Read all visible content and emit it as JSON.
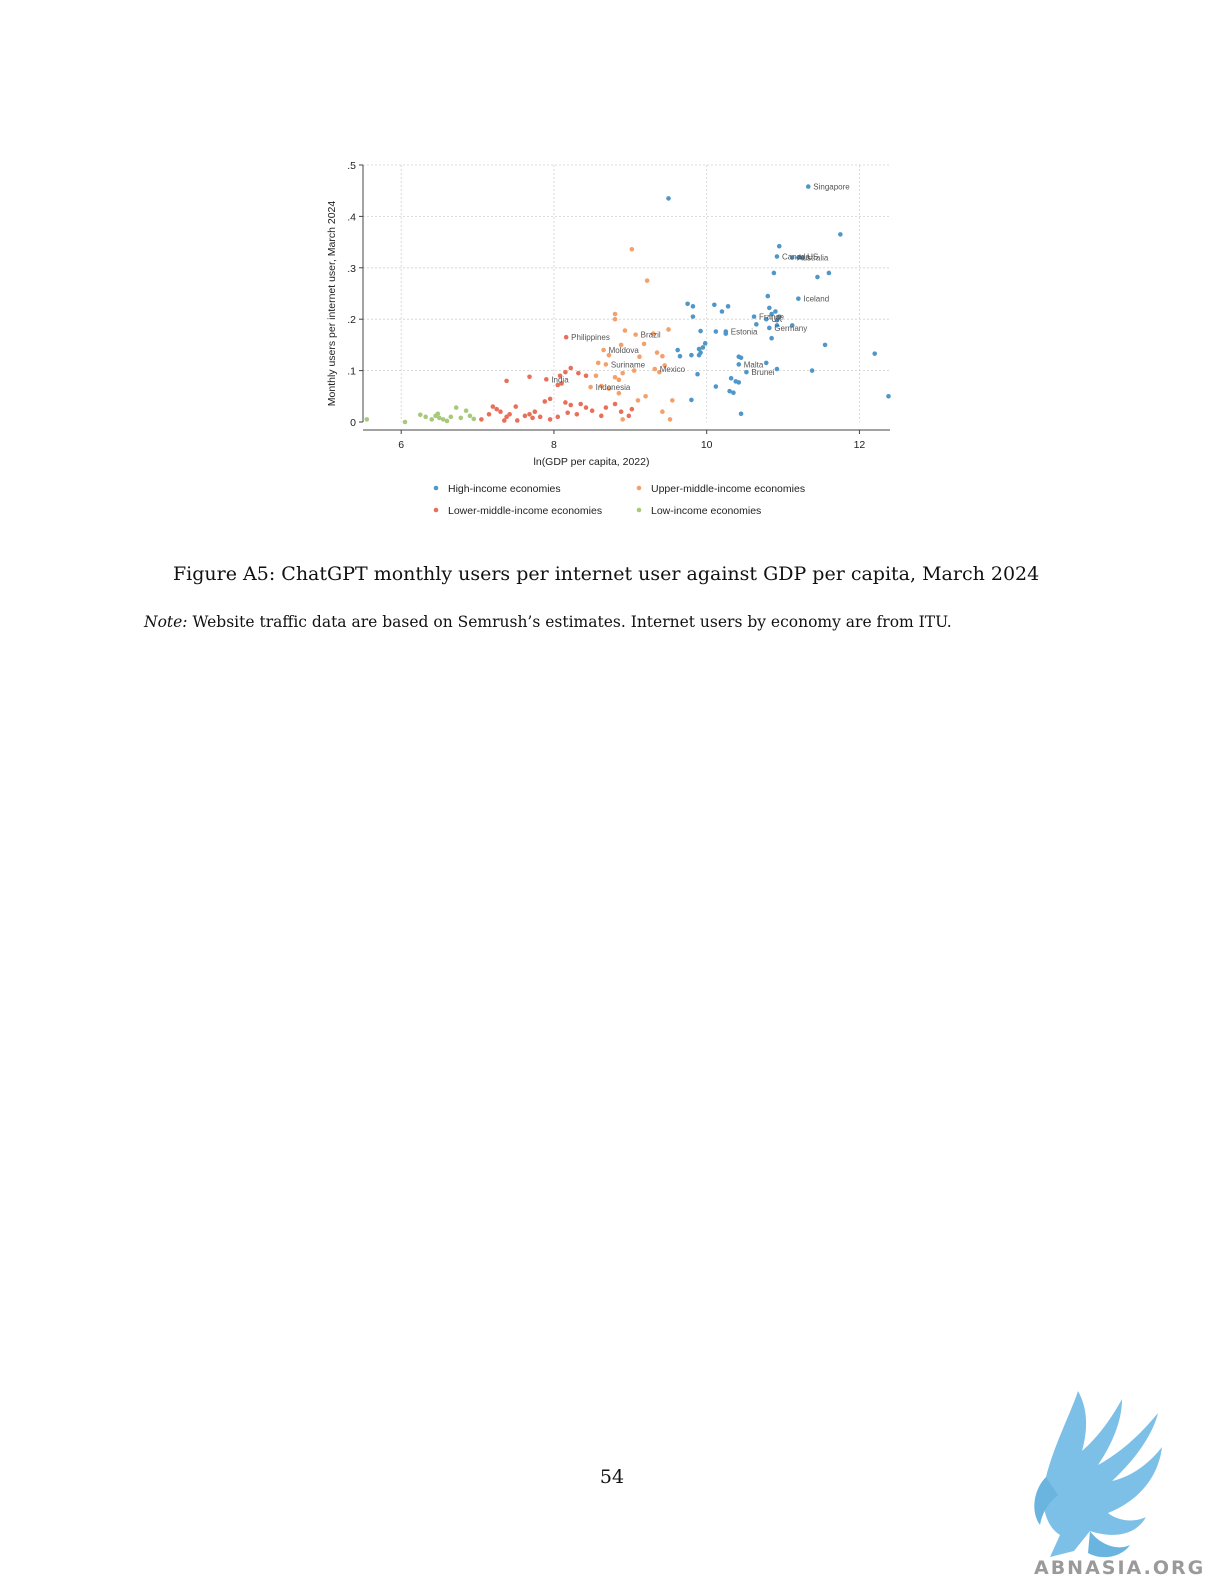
{
  "figure": {
    "caption": "Figure A5: ChatGPT monthly users per internet user against GDP per capita, March 2024",
    "note_label": "Note:",
    "note_text": " Website traffic data are based on Semrush’s estimates. Internet users by economy are from ITU."
  },
  "page": {
    "number": "54"
  },
  "logo": {
    "text": "ABNASIA.ORG",
    "icon": "griffin-icon"
  },
  "chart_data": {
    "type": "scatter",
    "title": "",
    "xlabel": "ln(GDP per capita, 2022)",
    "ylabel": "Monthly users per internet user, March 2024",
    "xlim": [
      5.5,
      12.4
    ],
    "ylim": [
      0,
      0.5
    ],
    "x_ticks": [
      6,
      8,
      10,
      12
    ],
    "x_tick_labels": [
      "6",
      "8",
      "10",
      "12"
    ],
    "y_ticks": [
      0,
      0.1,
      0.2,
      0.3,
      0.4,
      0.5
    ],
    "y_tick_labels": [
      "0",
      ".1",
      ".2",
      ".3",
      ".4",
      ".5"
    ],
    "grid": true,
    "legend_position": "bottom",
    "series": [
      {
        "name": "High-income economies",
        "color": "#4f97c9",
        "points": [
          [
            9.5,
            0.435
          ],
          [
            11.33,
            0.458
          ],
          [
            11.75,
            0.365
          ],
          [
            10.95,
            0.342
          ],
          [
            10.92,
            0.322
          ],
          [
            11.12,
            0.32
          ],
          [
            11.2,
            0.32
          ],
          [
            11.25,
            0.32
          ],
          [
            10.88,
            0.29
          ],
          [
            11.6,
            0.29
          ],
          [
            11.45,
            0.282
          ],
          [
            10.8,
            0.245
          ],
          [
            11.2,
            0.24
          ],
          [
            9.75,
            0.23
          ],
          [
            9.82,
            0.225
          ],
          [
            10.1,
            0.228
          ],
          [
            10.28,
            0.225
          ],
          [
            10.82,
            0.222
          ],
          [
            10.2,
            0.215
          ],
          [
            10.9,
            0.215
          ],
          [
            10.85,
            0.21
          ],
          [
            9.82,
            0.205
          ],
          [
            10.62,
            0.205
          ],
          [
            10.95,
            0.205
          ],
          [
            10.78,
            0.2
          ],
          [
            10.92,
            0.198
          ],
          [
            10.65,
            0.19
          ],
          [
            10.92,
            0.188
          ],
          [
            11.12,
            0.188
          ],
          [
            10.82,
            0.183
          ],
          [
            9.92,
            0.177
          ],
          [
            10.12,
            0.176
          ],
          [
            10.25,
            0.172
          ],
          [
            10.25,
            0.176
          ],
          [
            10.85,
            0.163
          ],
          [
            9.98,
            0.153
          ],
          [
            11.55,
            0.15
          ],
          [
            9.95,
            0.145
          ],
          [
            9.9,
            0.142
          ],
          [
            9.62,
            0.14
          ],
          [
            9.92,
            0.135
          ],
          [
            9.8,
            0.13
          ],
          [
            9.65,
            0.128
          ],
          [
            9.9,
            0.13
          ],
          [
            10.42,
            0.127
          ],
          [
            10.45,
            0.125
          ],
          [
            10.42,
            0.112
          ],
          [
            10.78,
            0.115
          ],
          [
            10.92,
            0.103
          ],
          [
            10.52,
            0.097
          ],
          [
            11.38,
            0.1
          ],
          [
            9.88,
            0.093
          ],
          [
            10.32,
            0.085
          ],
          [
            10.38,
            0.079
          ],
          [
            10.42,
            0.077
          ],
          [
            10.12,
            0.069
          ],
          [
            10.3,
            0.06
          ],
          [
            10.35,
            0.057
          ],
          [
            9.8,
            0.043
          ],
          [
            10.45,
            0.016
          ],
          [
            12.2,
            0.133
          ],
          [
            12.38,
            0.05
          ]
        ],
        "labels": [
          {
            "text": "Singapore",
            "x": 11.33,
            "y": 0.458
          },
          {
            "text": "Canada",
            "x": 10.92,
            "y": 0.322
          },
          {
            "text": "US",
            "x": 11.25,
            "y": 0.322
          },
          {
            "text": "Australia",
            "x": 11.12,
            "y": 0.32
          },
          {
            "text": "Iceland",
            "x": 11.2,
            "y": 0.24
          },
          {
            "text": "France",
            "x": 10.62,
            "y": 0.205
          },
          {
            "text": "UK",
            "x": 10.78,
            "y": 0.2
          },
          {
            "text": "Germany",
            "x": 10.82,
            "y": 0.183
          },
          {
            "text": "Estonia",
            "x": 10.25,
            "y": 0.176
          },
          {
            "text": "Malta",
            "x": 10.42,
            "y": 0.112
          },
          {
            "text": "Brunei",
            "x": 10.52,
            "y": 0.097
          }
        ]
      },
      {
        "name": "Upper-middle-income economies",
        "color": "#f4a06b",
        "points": [
          [
            9.02,
            0.336
          ],
          [
            9.22,
            0.275
          ],
          [
            8.8,
            0.21
          ],
          [
            8.8,
            0.2
          ],
          [
            9.5,
            0.18
          ],
          [
            8.93,
            0.178
          ],
          [
            9.07,
            0.17
          ],
          [
            9.3,
            0.172
          ],
          [
            9.18,
            0.152
          ],
          [
            8.88,
            0.15
          ],
          [
            8.65,
            0.14
          ],
          [
            9.35,
            0.135
          ],
          [
            8.72,
            0.13
          ],
          [
            9.42,
            0.128
          ],
          [
            9.12,
            0.127
          ],
          [
            8.58,
            0.115
          ],
          [
            8.68,
            0.112
          ],
          [
            9.45,
            0.11
          ],
          [
            9.32,
            0.103
          ],
          [
            9.05,
            0.1
          ],
          [
            9.38,
            0.097
          ],
          [
            8.9,
            0.095
          ],
          [
            8.55,
            0.09
          ],
          [
            8.8,
            0.087
          ],
          [
            8.85,
            0.082
          ],
          [
            8.48,
            0.068
          ],
          [
            8.62,
            0.07
          ],
          [
            8.72,
            0.065
          ],
          [
            8.85,
            0.056
          ],
          [
            9.2,
            0.05
          ],
          [
            9.55,
            0.042
          ],
          [
            9.1,
            0.042
          ],
          [
            9.42,
            0.02
          ],
          [
            9.52,
            0.005
          ],
          [
            8.9,
            0.005
          ]
        ],
        "labels": [
          {
            "text": "Brazil",
            "x": 9.07,
            "y": 0.17
          },
          {
            "text": "Moldova",
            "x": 8.65,
            "y": 0.14
          },
          {
            "text": "Suriname",
            "x": 8.68,
            "y": 0.112
          },
          {
            "text": "Mexico",
            "x": 9.32,
            "y": 0.103
          },
          {
            "text": "Indonesia",
            "x": 8.48,
            "y": 0.068
          }
        ]
      },
      {
        "name": "Lower-middle-income economies",
        "color": "#e8705a",
        "points": [
          [
            8.16,
            0.165
          ],
          [
            8.22,
            0.105
          ],
          [
            8.15,
            0.097
          ],
          [
            8.08,
            0.09
          ],
          [
            8.32,
            0.095
          ],
          [
            8.42,
            0.09
          ],
          [
            7.68,
            0.088
          ],
          [
            7.9,
            0.083
          ],
          [
            7.38,
            0.08
          ],
          [
            8.1,
            0.075
          ],
          [
            8.05,
            0.072
          ],
          [
            7.95,
            0.045
          ],
          [
            7.88,
            0.04
          ],
          [
            8.15,
            0.038
          ],
          [
            8.22,
            0.033
          ],
          [
            8.35,
            0.035
          ],
          [
            8.42,
            0.028
          ],
          [
            8.5,
            0.022
          ],
          [
            8.68,
            0.028
          ],
          [
            8.8,
            0.035
          ],
          [
            8.88,
            0.02
          ],
          [
            8.62,
            0.012
          ],
          [
            8.3,
            0.015
          ],
          [
            8.18,
            0.018
          ],
          [
            8.05,
            0.01
          ],
          [
            7.95,
            0.005
          ],
          [
            7.82,
            0.01
          ],
          [
            7.75,
            0.02
          ],
          [
            7.68,
            0.015
          ],
          [
            7.72,
            0.008
          ],
          [
            7.62,
            0.012
          ],
          [
            7.5,
            0.03
          ],
          [
            7.42,
            0.015
          ],
          [
            7.38,
            0.01
          ],
          [
            7.35,
            0.003
          ],
          [
            7.3,
            0.02
          ],
          [
            7.25,
            0.025
          ],
          [
            7.2,
            0.03
          ],
          [
            7.15,
            0.015
          ],
          [
            7.05,
            0.005
          ],
          [
            7.52,
            0.003
          ],
          [
            8.98,
            0.012
          ],
          [
            9.02,
            0.025
          ]
        ],
        "labels": [
          {
            "text": "Philippines",
            "x": 8.16,
            "y": 0.165
          },
          {
            "text": "India",
            "x": 7.9,
            "y": 0.083
          }
        ]
      },
      {
        "name": "Low-income economies",
        "color": "#a8c97a",
        "points": [
          [
            5.55,
            0.005
          ],
          [
            6.05,
            0.0
          ],
          [
            6.25,
            0.014
          ],
          [
            6.32,
            0.01
          ],
          [
            6.4,
            0.005
          ],
          [
            6.45,
            0.012
          ],
          [
            6.48,
            0.016
          ],
          [
            6.55,
            0.005
          ],
          [
            6.6,
            0.002
          ],
          [
            6.65,
            0.01
          ],
          [
            6.72,
            0.028
          ],
          [
            6.78,
            0.008
          ],
          [
            6.85,
            0.022
          ],
          [
            6.9,
            0.012
          ],
          [
            6.95,
            0.006
          ],
          [
            6.5,
            0.008
          ]
        ]
      }
    ]
  }
}
